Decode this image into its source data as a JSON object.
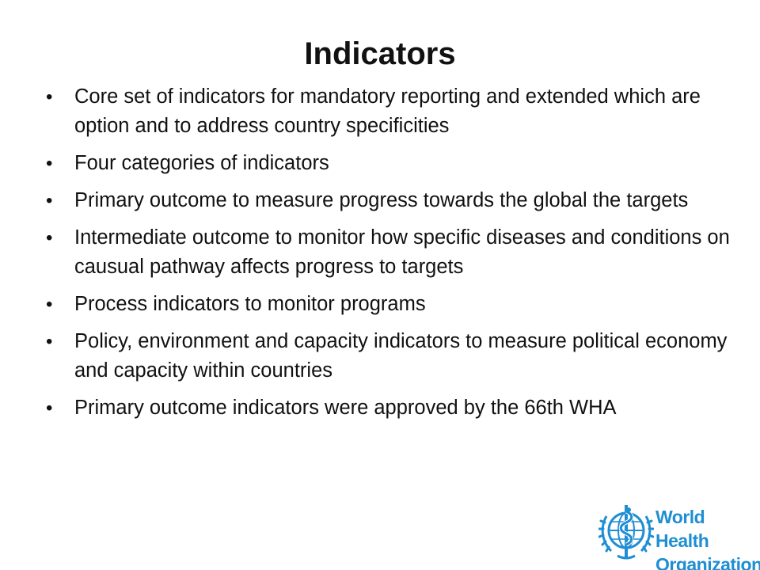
{
  "slide": {
    "title": "Indicators",
    "bullets": [
      "Core set of indicators for mandatory reporting and extended which are option and to address country specificities",
      "Four categories of indicators",
      "Primary outcome to measure progress towards the global the targets",
      "Intermediate outcome to monitor how specific diseases and conditions on causual pathway affects progress to targets",
      "Process indicators to monitor programs",
      "Policy, environment and capacity indicators to measure political economy and capacity within countries",
      "Primary outcome indicators were  approved by the 66th WHA"
    ],
    "bullet_marker": "•"
  },
  "logo": {
    "line1": "World Health",
    "line2": "Organization",
    "icon": "who-emblem-icon",
    "color": "#1f8ed3"
  }
}
